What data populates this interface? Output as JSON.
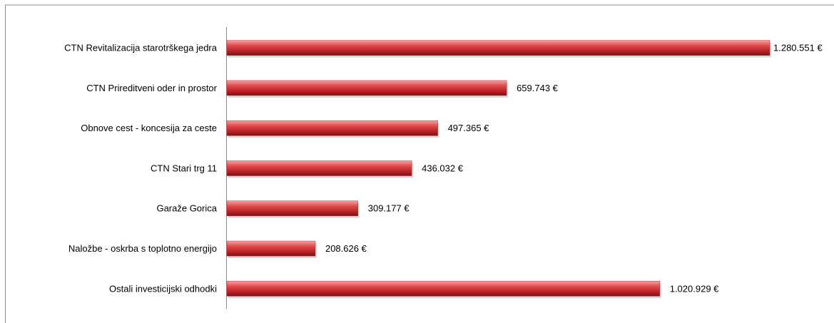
{
  "chart_data": {
    "type": "bar",
    "orientation": "horizontal",
    "categories": [
      "CTN Revitalizacija starotrškega jedra",
      "CTN Prireditveni oder in prostor",
      "Obnove cest - koncesija za ceste",
      "CTN Stari trg 11",
      "Garaže Gorica",
      "Naložbe - oskrba s toplotno energijo",
      "Ostali investicijski odhodki"
    ],
    "values": [
      1280551,
      659743,
      497365,
      436032,
      309177,
      208626,
      1020929
    ],
    "value_labels": [
      "1.280.551 €",
      "659.743 €",
      "497.365 €",
      "436.032 €",
      "309.177 €",
      "208.626 €",
      "1.020.929 €"
    ],
    "color": "#c0282d",
    "xlim": [
      0,
      1400000
    ]
  }
}
